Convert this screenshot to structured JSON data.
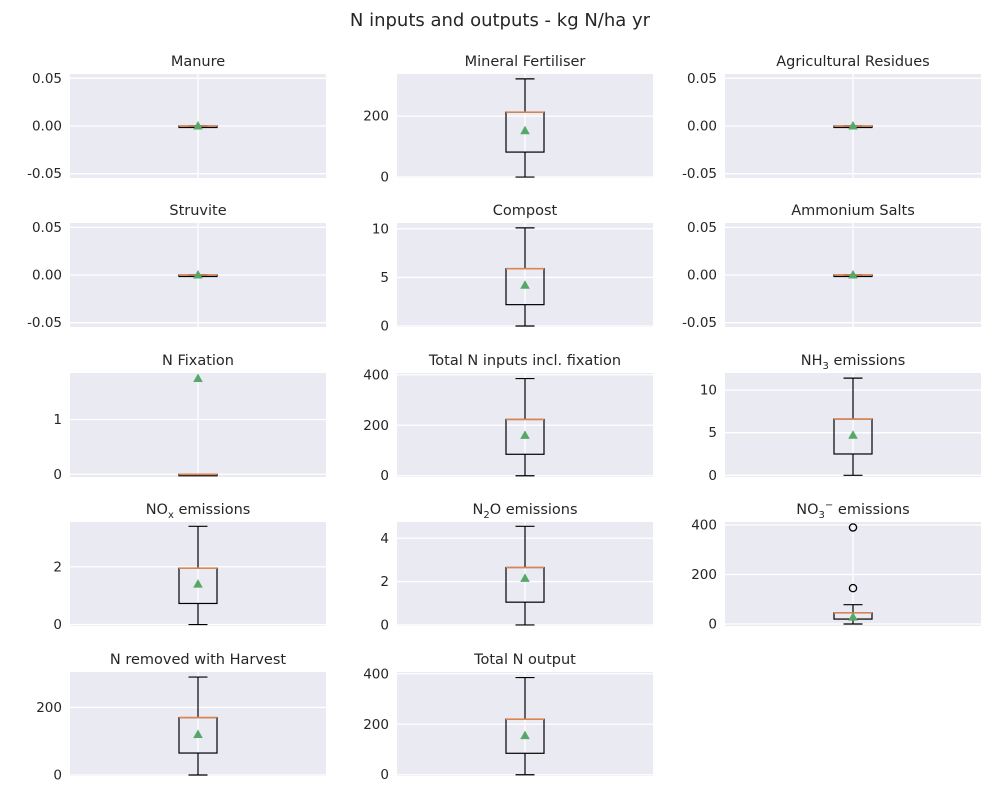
{
  "figure": {
    "title": "N inputs and outputs - kg N/ha yr",
    "colors": {
      "background": "#eaeaf2",
      "grid": "#ffffff",
      "box_edge": "#000000",
      "median": "#dd8452",
      "mean_marker": "#55a868",
      "text": "#262626"
    }
  },
  "chart_data": [
    {
      "type": "box",
      "title": "Manure",
      "yticks": [
        "0.05",
        "0.00",
        "-0.05"
      ],
      "ytick_values": [
        0.05,
        0.0,
        -0.05
      ],
      "ylim": [
        -0.0545,
        0.0545
      ],
      "box": {
        "whisker_low": 0,
        "q1": 0,
        "median": 0,
        "q3": 0,
        "whisker_high": 0,
        "mean": 0,
        "outliers": []
      },
      "grid": true
    },
    {
      "type": "box",
      "title": "Mineral Fertiliser",
      "yticks": [
        "200",
        "0"
      ],
      "ytick_values": [
        200,
        0
      ],
      "ylim": [
        -3,
        338
      ],
      "box": {
        "whisker_low": 0,
        "q1": 82,
        "median": 213,
        "q3": 213,
        "whisker_high": 322,
        "mean": 152,
        "outliers": []
      },
      "grid": true
    },
    {
      "type": "box",
      "title": "Agricultural Residues",
      "yticks": [
        "0.05",
        "0.00",
        "-0.05"
      ],
      "ytick_values": [
        0.05,
        0.0,
        -0.05
      ],
      "ylim": [
        -0.0545,
        0.0545
      ],
      "box": {
        "whisker_low": 0,
        "q1": 0,
        "median": 0,
        "q3": 0,
        "whisker_high": 0,
        "mean": 0,
        "outliers": []
      },
      "grid": true
    },
    {
      "type": "box",
      "title": "Struvite",
      "yticks": [
        "0.05",
        "0.00",
        "-0.05"
      ],
      "ytick_values": [
        0.05,
        0.0,
        -0.05
      ],
      "ylim": [
        -0.0545,
        0.0545
      ],
      "box": {
        "whisker_low": 0,
        "q1": 0,
        "median": 0,
        "q3": 0,
        "whisker_high": 0,
        "mean": 0,
        "outliers": []
      },
      "grid": true
    },
    {
      "type": "box",
      "title": "Compost",
      "yticks": [
        "10",
        "5",
        "0"
      ],
      "ytick_values": [
        10,
        5,
        0
      ],
      "ylim": [
        -0.1,
        10.6
      ],
      "box": {
        "whisker_low": 0,
        "q1": 2.2,
        "median": 5.9,
        "q3": 5.9,
        "whisker_high": 10.1,
        "mean": 4.2,
        "outliers": []
      },
      "grid": true
    },
    {
      "type": "box",
      "title": "Ammonium Salts",
      "yticks": [
        "0.05",
        "0.00",
        "-0.05"
      ],
      "ytick_values": [
        0.05,
        0.0,
        -0.05
      ],
      "ylim": [
        -0.0545,
        0.0545
      ],
      "box": {
        "whisker_low": 0,
        "q1": 0,
        "median": 0,
        "q3": 0,
        "whisker_high": 0,
        "mean": 0,
        "outliers": []
      },
      "grid": true
    },
    {
      "type": "box",
      "title": "N Fixation",
      "yticks": [
        "1",
        "0"
      ],
      "ytick_values": [
        1,
        0
      ],
      "ylim": [
        -0.05,
        1.85
      ],
      "box": {
        "whisker_low": 0,
        "q1": 0,
        "median": 0,
        "q3": 0,
        "whisker_high": 0,
        "mean": 1.75,
        "outliers": []
      },
      "grid": true
    },
    {
      "type": "box",
      "title": "Total N inputs incl. fixation",
      "yticks": [
        "400",
        "200",
        "0"
      ],
      "ytick_values": [
        400,
        200,
        0
      ],
      "ylim": [
        -5,
        407
      ],
      "box": {
        "whisker_low": 0,
        "q1": 85,
        "median": 223,
        "q3": 223,
        "whisker_high": 385,
        "mean": 160,
        "outliers": []
      },
      "grid": true
    },
    {
      "type": "box",
      "title": "NH",
      "title_sub": "3",
      "title_after": " emissions",
      "yticks": [
        "10",
        "5",
        "0"
      ],
      "ytick_values": [
        10,
        5,
        0
      ],
      "ylim": [
        -0.2,
        12.0
      ],
      "box": {
        "whisker_low": 0,
        "q1": 2.5,
        "median": 6.6,
        "q3": 6.6,
        "whisker_high": 11.4,
        "mean": 4.7,
        "outliers": []
      },
      "grid": true
    },
    {
      "type": "box",
      "title": "NO",
      "title_sub": "x",
      "title_after": " emissions",
      "yticks": [
        "2",
        "0"
      ],
      "ytick_values": [
        2,
        0
      ],
      "ylim": [
        -0.05,
        3.55
      ],
      "box": {
        "whisker_low": 0,
        "q1": 0.73,
        "median": 1.95,
        "q3": 1.95,
        "whisker_high": 3.4,
        "mean": 1.4,
        "outliers": []
      },
      "grid": true
    },
    {
      "type": "box",
      "title": "N",
      "title_sub": "2",
      "title_after": "O emissions",
      "yticks": [
        "4",
        "2",
        "0"
      ],
      "ytick_values": [
        4,
        2,
        0
      ],
      "ylim": [
        -0.05,
        4.75
      ],
      "box": {
        "whisker_low": 0,
        "q1": 1.05,
        "median": 2.65,
        "q3": 2.65,
        "whisker_high": 4.55,
        "mean": 2.15,
        "outliers": []
      },
      "grid": true
    },
    {
      "type": "box",
      "title": "NO",
      "title_sub": "3",
      "title_sup": "−",
      "title_after": " emissions",
      "yticks": [
        "400",
        "200",
        "0"
      ],
      "ytick_values": [
        400,
        200,
        0
      ],
      "ylim": [
        -8,
        412
      ],
      "box": {
        "whisker_low": 0,
        "q1": 20,
        "median": 45,
        "q3": 45,
        "whisker_high": 78,
        "mean": 28,
        "outliers": [
          145,
          390
        ]
      },
      "grid": true
    },
    {
      "type": "box",
      "title": "N removed with Harvest",
      "yticks": [
        "200",
        "0"
      ],
      "ytick_values": [
        200,
        0
      ],
      "ylim": [
        -3,
        305
      ],
      "box": {
        "whisker_low": 0,
        "q1": 65,
        "median": 170,
        "q3": 170,
        "whisker_high": 290,
        "mean": 120,
        "outliers": []
      },
      "grid": true
    },
    {
      "type": "box",
      "title": "Total N output",
      "yticks": [
        "400",
        "200",
        "0"
      ],
      "ytick_values": [
        400,
        200,
        0
      ],
      "ylim": [
        -5,
        407
      ],
      "box": {
        "whisker_low": 0,
        "q1": 85,
        "median": 220,
        "q3": 220,
        "whisker_high": 385,
        "mean": 155,
        "outliers": []
      },
      "grid": true
    }
  ]
}
